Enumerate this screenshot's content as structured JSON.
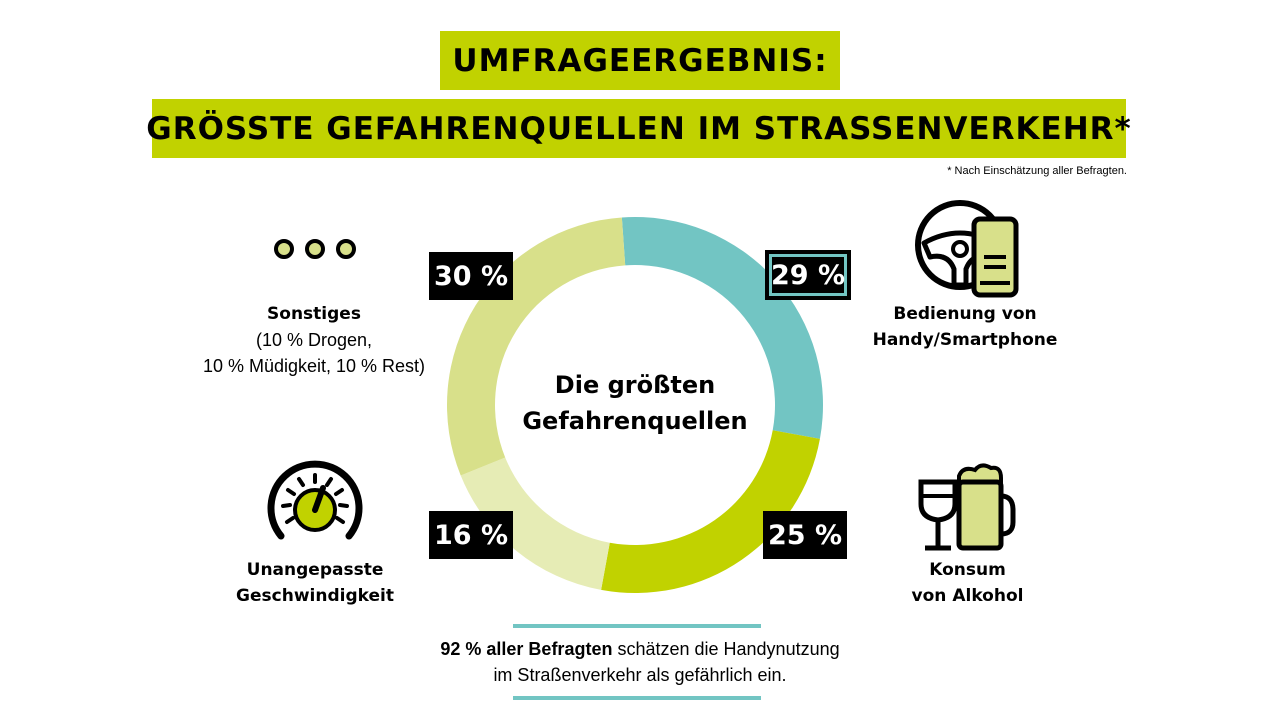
{
  "header": {
    "title_line1": "UMFRAGEERGEBNIS:",
    "title_line2": "GRÖSSTE GEFAHRENQUELLEN IM STRASSENVERKEHR*",
    "footnote": "* Nach Einschätzung aller Befragten."
  },
  "center_label": [
    "Die größten",
    "Gefahrenquellen"
  ],
  "chart_data": {
    "type": "pie",
    "categories": [
      "Bedienung von Handy/Smartphone",
      "Konsum von Alkohol",
      "Unangepasste Geschwindigkeit",
      "Sonstiges"
    ],
    "values": [
      29,
      25,
      16,
      30
    ],
    "value_labels": [
      "29 %",
      "25 %",
      "16 %",
      "30 %"
    ],
    "donut": true,
    "colors": [
      "#72c5c3",
      "#c1d200",
      "#e6ecb5",
      "#d8e08a"
    ]
  },
  "labels": {
    "phone": [
      "Bedienung von",
      "Handy/Smartphone"
    ],
    "alcohol": [
      "Konsum",
      "von Alkohol"
    ],
    "speed": [
      "Unangepasste",
      "Geschwindigkeit"
    ],
    "other_title": "Sonstiges",
    "other_detail": [
      "(10 % Drogen,",
      "10 % Müdigkeit, 10 % Rest)"
    ]
  },
  "bottom": {
    "bold": "92 % aller Befragten",
    "rest_line1": " schätzen die Handynutzung",
    "line2": "im Straßenverkehr als gefährlich ein."
  },
  "icons": [
    "three-dots-icon",
    "steering-wheel-phone-icon",
    "beer-wine-icon",
    "speedometer-icon"
  ]
}
